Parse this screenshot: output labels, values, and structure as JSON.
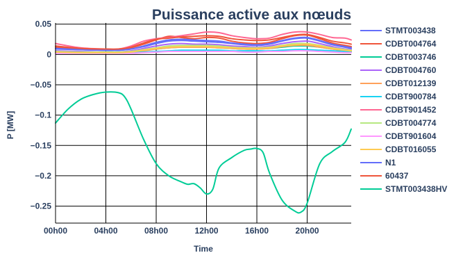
{
  "chart_data": {
    "type": "line",
    "title": "Puissance active aux nœuds",
    "xlabel": "Time",
    "ylabel": "P [MW]",
    "xlim": [
      0,
      23.5
    ],
    "ylim": [
      -0.278,
      0.052
    ],
    "x_ticks": [
      {
        "value": 0,
        "label": "00h00"
      },
      {
        "value": 4,
        "label": "04h00"
      },
      {
        "value": 8,
        "label": "08h00"
      },
      {
        "value": 12,
        "label": "12h00"
      },
      {
        "value": 16,
        "label": "16h00"
      },
      {
        "value": 20,
        "label": "20h00"
      }
    ],
    "y_ticks": [
      {
        "value": 0.05,
        "label": "0.05"
      },
      {
        "value": 0,
        "label": "0"
      },
      {
        "value": -0.05,
        "label": "−0.05"
      },
      {
        "value": -0.1,
        "label": "−0.1"
      },
      {
        "value": -0.15,
        "label": "−0.15"
      },
      {
        "value": -0.2,
        "label": "−0.2"
      },
      {
        "value": -0.25,
        "label": "−0.25"
      }
    ],
    "grid": true,
    "legend_position": "right",
    "series": [
      {
        "name": "STMT003438",
        "color": "#636efa",
        "x": [
          0,
          2,
          4,
          5,
          6,
          7,
          8,
          9,
          10,
          11,
          12,
          13,
          14,
          15,
          16,
          17,
          18,
          19,
          20,
          21,
          22,
          23,
          23.5
        ],
        "values": [
          0.009,
          0.008,
          0.007,
          0.007,
          0.009,
          0.013,
          0.018,
          0.022,
          0.023,
          0.022,
          0.021,
          0.02,
          0.018,
          0.016,
          0.015,
          0.017,
          0.022,
          0.026,
          0.027,
          0.022,
          0.016,
          0.012,
          0.01
        ]
      },
      {
        "name": "CDBT004764",
        "color": "#ef553b",
        "x": [
          0,
          2,
          4,
          5,
          6,
          7,
          8,
          9,
          10,
          11,
          12,
          13,
          14,
          15,
          16,
          17,
          18,
          19,
          20,
          21,
          22,
          23,
          23.5
        ],
        "values": [
          0.012,
          0.009,
          0.008,
          0.008,
          0.011,
          0.017,
          0.024,
          0.03,
          0.028,
          0.026,
          0.028,
          0.027,
          0.022,
          0.019,
          0.018,
          0.02,
          0.026,
          0.031,
          0.032,
          0.026,
          0.019,
          0.015,
          0.013
        ]
      },
      {
        "name": "CDBT003746",
        "color": "#00cc96",
        "x": [
          0,
          2,
          4,
          5,
          6,
          7,
          8,
          9,
          10,
          11,
          12,
          13,
          14,
          15,
          16,
          17,
          18,
          19,
          20,
          21,
          22,
          23,
          23.5
        ],
        "values": [
          0.005,
          0.004,
          0.004,
          0.004,
          0.005,
          0.007,
          0.009,
          0.011,
          0.012,
          0.012,
          0.012,
          0.011,
          0.01,
          0.009,
          0.009,
          0.01,
          0.012,
          0.014,
          0.014,
          0.012,
          0.009,
          0.007,
          0.006
        ]
      },
      {
        "name": "CDBT004760",
        "color": "#ab63fa",
        "x": [
          0,
          2,
          4,
          5,
          6,
          7,
          8,
          9,
          10,
          11,
          12,
          13,
          14,
          15,
          16,
          17,
          18,
          19,
          20,
          21,
          22,
          23,
          23.5
        ],
        "values": [
          0.006,
          0.005,
          0.004,
          0.004,
          0.006,
          0.01,
          0.014,
          0.017,
          0.018,
          0.017,
          0.017,
          0.016,
          0.014,
          0.013,
          0.012,
          0.014,
          0.018,
          0.021,
          0.022,
          0.018,
          0.013,
          0.009,
          0.008
        ]
      },
      {
        "name": "CDBT012139",
        "color": "#ffa15a",
        "x": [
          0,
          2,
          4,
          5,
          6,
          7,
          8,
          9,
          10,
          11,
          12,
          13,
          14,
          15,
          16,
          17,
          18,
          19,
          20,
          21,
          22,
          23,
          23.5
        ],
        "values": [
          0.004,
          0.003,
          0.003,
          0.003,
          0.004,
          0.006,
          0.009,
          0.011,
          0.012,
          0.012,
          0.012,
          0.011,
          0.01,
          0.009,
          0.009,
          0.01,
          0.013,
          0.015,
          0.015,
          0.012,
          0.009,
          0.006,
          0.005
        ]
      },
      {
        "name": "CDBT900784",
        "color": "#19d3f3",
        "x": [
          0,
          2,
          4,
          5,
          6,
          7,
          8,
          9,
          10,
          11,
          12,
          13,
          14,
          15,
          16,
          17,
          18,
          19,
          20,
          21,
          22,
          23,
          23.5
        ],
        "values": [
          0.003,
          0.003,
          0.003,
          0.003,
          0.003,
          0.004,
          0.005,
          0.006,
          0.007,
          0.007,
          0.007,
          0.007,
          0.006,
          0.006,
          0.006,
          0.006,
          0.007,
          0.008,
          0.008,
          0.007,
          0.006,
          0.005,
          0.004
        ]
      },
      {
        "name": "CDBT901452",
        "color": "#ff6692",
        "x": [
          0,
          2,
          4,
          5,
          6,
          7,
          8,
          9,
          10,
          11,
          12,
          13,
          14,
          15,
          16,
          17,
          18,
          19,
          20,
          21,
          22,
          23,
          23.5
        ],
        "values": [
          0.018,
          0.011,
          0.009,
          0.009,
          0.014,
          0.022,
          0.026,
          0.028,
          0.031,
          0.034,
          0.037,
          0.036,
          0.031,
          0.028,
          0.026,
          0.027,
          0.033,
          0.037,
          0.037,
          0.033,
          0.028,
          0.027,
          0.024
        ]
      },
      {
        "name": "CDBT004774",
        "color": "#b6e880",
        "x": [
          0,
          2,
          4,
          5,
          6,
          7,
          8,
          9,
          10,
          11,
          12,
          13,
          14,
          15,
          16,
          17,
          18,
          19,
          20,
          21,
          22,
          23,
          23.5
        ],
        "values": [
          0.005,
          0.004,
          0.004,
          0.004,
          0.005,
          0.008,
          0.011,
          0.014,
          0.015,
          0.015,
          0.015,
          0.014,
          0.012,
          0.011,
          0.011,
          0.012,
          0.015,
          0.018,
          0.018,
          0.015,
          0.011,
          0.008,
          0.007
        ]
      },
      {
        "name": "CDBT901604",
        "color": "#ff97ff",
        "x": [
          0,
          2,
          4,
          5,
          6,
          7,
          8,
          9,
          10,
          11,
          12,
          13,
          14,
          15,
          16,
          17,
          18,
          19,
          20,
          21,
          22,
          23,
          23.5
        ],
        "values": [
          0.002,
          0.002,
          0.002,
          0.002,
          0.002,
          0.003,
          0.004,
          0.005,
          0.005,
          0.005,
          0.005,
          0.005,
          0.005,
          0.004,
          0.004,
          0.005,
          0.005,
          0.006,
          0.006,
          0.005,
          0.004,
          0.003,
          0.003
        ]
      },
      {
        "name": "CDBT016055",
        "color": "#fecb52",
        "x": [
          0,
          2,
          4,
          5,
          6,
          7,
          8,
          9,
          10,
          11,
          12,
          13,
          14,
          15,
          16,
          17,
          18,
          19,
          20,
          21,
          22,
          23,
          23.5
        ],
        "values": [
          0.004,
          0.003,
          0.003,
          0.003,
          0.004,
          0.007,
          0.01,
          0.012,
          0.013,
          0.013,
          0.013,
          0.012,
          0.011,
          0.01,
          0.01,
          0.011,
          0.014,
          0.016,
          0.017,
          0.014,
          0.01,
          0.007,
          0.006
        ]
      },
      {
        "name": "N1",
        "color": "#636efa",
        "x": [
          0,
          2,
          4,
          5,
          6,
          7,
          8,
          9,
          10,
          11,
          12,
          13,
          14,
          15,
          16,
          17,
          18,
          19,
          20,
          21,
          22,
          23,
          23.5
        ],
        "values": [
          0.01,
          0.008,
          0.007,
          0.007,
          0.009,
          0.014,
          0.02,
          0.024,
          0.025,
          0.024,
          0.023,
          0.022,
          0.019,
          0.017,
          0.016,
          0.018,
          0.023,
          0.027,
          0.028,
          0.023,
          0.017,
          0.013,
          0.011
        ]
      },
      {
        "name": "60437",
        "color": "#ef553b",
        "x": [
          0,
          2,
          4,
          5,
          6,
          7,
          8,
          9,
          10,
          11,
          12,
          13,
          14,
          15,
          16,
          17,
          18,
          19,
          20,
          21,
          22,
          23,
          23.5
        ],
        "values": [
          0.014,
          0.01,
          0.009,
          0.009,
          0.012,
          0.019,
          0.025,
          0.027,
          0.029,
          0.03,
          0.031,
          0.03,
          0.026,
          0.024,
          0.023,
          0.024,
          0.028,
          0.032,
          0.033,
          0.028,
          0.022,
          0.019,
          0.017
        ]
      },
      {
        "name": "STMT003438HV",
        "color": "#00cc96",
        "x": [
          0,
          1,
          2,
          3,
          4,
          5,
          5.5,
          6,
          7,
          8,
          9,
          10,
          10.5,
          11,
          11.5,
          12,
          12.5,
          13,
          14,
          15,
          15.5,
          16,
          16.5,
          17,
          18,
          19,
          19.5,
          20,
          21,
          22,
          23,
          23.5
        ],
        "values": [
          -0.113,
          -0.09,
          -0.074,
          -0.066,
          -0.062,
          -0.063,
          -0.07,
          -0.09,
          -0.14,
          -0.18,
          -0.2,
          -0.21,
          -0.214,
          -0.213,
          -0.22,
          -0.23,
          -0.222,
          -0.187,
          -0.17,
          -0.158,
          -0.156,
          -0.155,
          -0.162,
          -0.195,
          -0.24,
          -0.258,
          -0.26,
          -0.245,
          -0.18,
          -0.16,
          -0.145,
          -0.123
        ]
      }
    ]
  }
}
